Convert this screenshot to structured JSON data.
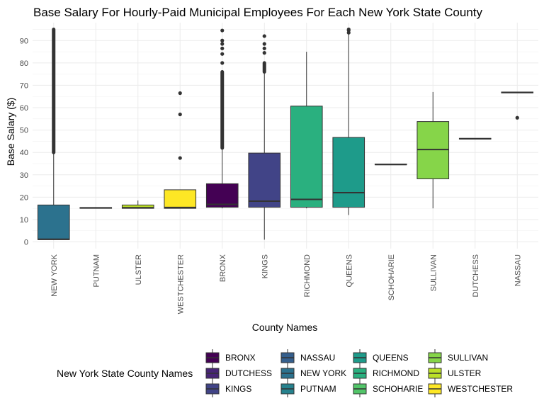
{
  "chart_data": {
    "type": "boxplot",
    "title": "Base Salary For Hourly-Paid Municipal Employees For Each New York State County",
    "xlabel": "County Names",
    "ylabel": "Base Salary ($)",
    "ylim": [
      -3,
      98
    ],
    "yticks": [
      0,
      10,
      20,
      30,
      40,
      50,
      60,
      70,
      80,
      90
    ],
    "grid": true,
    "legend_title": "New York State County Names",
    "legend_position": "bottom",
    "legend_order": [
      "BRONX",
      "DUTCHESS",
      "KINGS",
      "NASSAU",
      "NEW YORK",
      "PUTNAM",
      "QUEENS",
      "RICHMOND",
      "SCHOHARIE",
      "SULLIVAN",
      "ULSTER",
      "WESTCHESTER"
    ],
    "series": [
      {
        "name": "NEW YORK",
        "color": "#2C728E",
        "min": 1,
        "q1": 1,
        "median": 1.2,
        "q3": 16.5,
        "max": 40,
        "outliers_range": [
          40,
          95
        ]
      },
      {
        "name": "PUTNAM",
        "color": "#26828E",
        "min": 15,
        "q1": 15,
        "median": 15.2,
        "q3": 15.4,
        "max": 15.4,
        "outliers": []
      },
      {
        "name": "ULSTER",
        "color": "#BBDF27",
        "min": 15,
        "q1": 15,
        "median": 15.3,
        "q3": 16.5,
        "max": 18.5,
        "outliers": []
      },
      {
        "name": "WESTCHESTER",
        "color": "#FDE725",
        "min": 15,
        "q1": 15,
        "median": 15.4,
        "q3": 23.3,
        "max": 23.3,
        "outliers": [
          37.5,
          57,
          66.5
        ]
      },
      {
        "name": "BRONX",
        "color": "#440154",
        "min": 15,
        "q1": 15.5,
        "median": 16.8,
        "q3": 26,
        "max": 42,
        "outliers_range": [
          42,
          76
        ],
        "outliers": [
          80,
          84,
          86.5,
          88.5,
          90,
          94.5
        ]
      },
      {
        "name": "KINGS",
        "color": "#414487",
        "min": 1,
        "q1": 15.5,
        "median": 18.2,
        "q3": 39.7,
        "max": 75.5,
        "outliers_range": [
          76,
          80
        ],
        "outliers": [
          84.5,
          86.5,
          88.5,
          92
        ]
      },
      {
        "name": "RICHMOND",
        "color": "#2AB07F",
        "min": 15,
        "q1": 15.5,
        "median": 19,
        "q3": 60.7,
        "max": 85,
        "outliers": []
      },
      {
        "name": "QUEENS",
        "color": "#1E9B8A",
        "min": 12,
        "q1": 15.5,
        "median": 22,
        "q3": 46.7,
        "max": 93,
        "outliers": [
          93.5,
          94.5,
          95
        ]
      },
      {
        "name": "SCHOHARIE",
        "color": "#52C569",
        "min": 34.5,
        "q1": 34.5,
        "median": 34.6,
        "q3": 34.8,
        "max": 34.8,
        "outliers": []
      },
      {
        "name": "SULLIVAN",
        "color": "#86D549",
        "min": 15,
        "q1": 28.2,
        "median": 41.3,
        "q3": 53.8,
        "max": 67,
        "outliers": []
      },
      {
        "name": "DUTCHESS",
        "color": "#482576",
        "min": 46,
        "q1": 46,
        "median": 46.1,
        "q3": 46.3,
        "max": 46.3,
        "outliers": []
      },
      {
        "name": "NASSAU",
        "color": "#355F8D",
        "min": 66.5,
        "q1": 66.6,
        "median": 66.8,
        "q3": 67,
        "max": 67,
        "outliers": [
          55.5
        ]
      }
    ]
  }
}
